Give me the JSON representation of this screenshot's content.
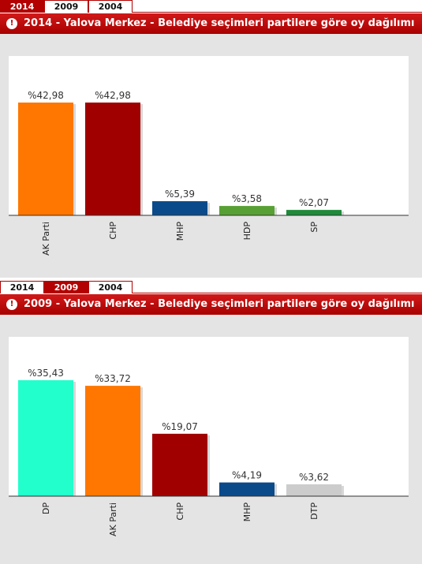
{
  "tabs": [
    "2014",
    "2009",
    "2004"
  ],
  "charts": [
    {
      "active_tab": 0,
      "title": "2014 - Yalova Merkez - Belediye seçimleri partilere göre oy dağılımı",
      "chart_data": {
        "type": "bar",
        "title": "2014 - Yalova Merkez - Belediye seçimleri partilere göre oy dağılımı",
        "categories": [
          "AK Parti",
          "CHP",
          "MHP",
          "HDP",
          "SP"
        ],
        "values": [
          42.98,
          42.98,
          5.39,
          3.58,
          2.07
        ],
        "labels": [
          "%42,98",
          "%42,98",
          "%5,39",
          "%3,58",
          "%2,07"
        ],
        "colors": [
          "#ff7700",
          "#a00000",
          "#0a4a8a",
          "#58a033",
          "#1f8a3a"
        ],
        "ylim": [
          0,
          50
        ]
      }
    },
    {
      "active_tab": 1,
      "title": "2009 - Yalova Merkez - Belediye seçimleri partilere göre oy dağılımı",
      "chart_data": {
        "type": "bar",
        "title": "2009 - Yalova Merkez - Belediye seçimleri partilere göre oy dağılımı",
        "categories": [
          "DP",
          "AK Parti",
          "CHP",
          "MHP",
          "DTP"
        ],
        "values": [
          35.43,
          33.72,
          19.07,
          4.19,
          3.62
        ],
        "labels": [
          "%35,43",
          "%33,72",
          "%19,07",
          "%4,19",
          "%3,62"
        ],
        "colors": [
          "#22ffcc",
          "#ff7700",
          "#a00000",
          "#0a4a8a",
          "#cccccc"
        ],
        "ylim": [
          0,
          50
        ]
      }
    }
  ]
}
